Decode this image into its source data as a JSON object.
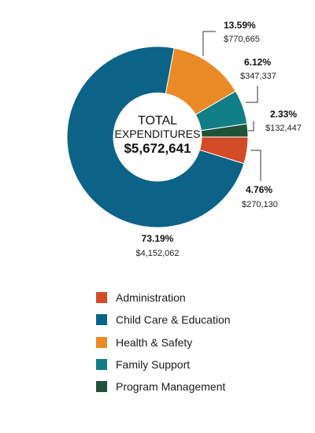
{
  "chart_data": {
    "type": "pie",
    "center_label": {
      "line1": "TOTAL",
      "line2": "EXPENDITURES",
      "total": "$5,672,641"
    },
    "slices": [
      {
        "name": "Administration",
        "percent": 4.76,
        "percent_label": "4.76%",
        "amount": "$270,130",
        "color": "#d24b27"
      },
      {
        "name": "Child Care & Education",
        "percent": 73.19,
        "percent_label": "73.19%",
        "amount": "$4,152,062",
        "color": "#0d6387"
      },
      {
        "name": "Health & Safety",
        "percent": 13.59,
        "percent_label": "13.59%",
        "amount": "$770,665",
        "color": "#ea8a26"
      },
      {
        "name": "Family Support",
        "percent": 6.12,
        "percent_label": "6.12%",
        "amount": "$347,337",
        "color": "#117d84"
      },
      {
        "name": "Program Management",
        "percent": 2.33,
        "percent_label": "2.33%",
        "amount": "$132,447",
        "color": "#1e5339"
      }
    ],
    "legend": [
      "Administration",
      "Child Care & Education",
      "Health & Safety",
      "Family Support",
      "Program Management"
    ]
  }
}
